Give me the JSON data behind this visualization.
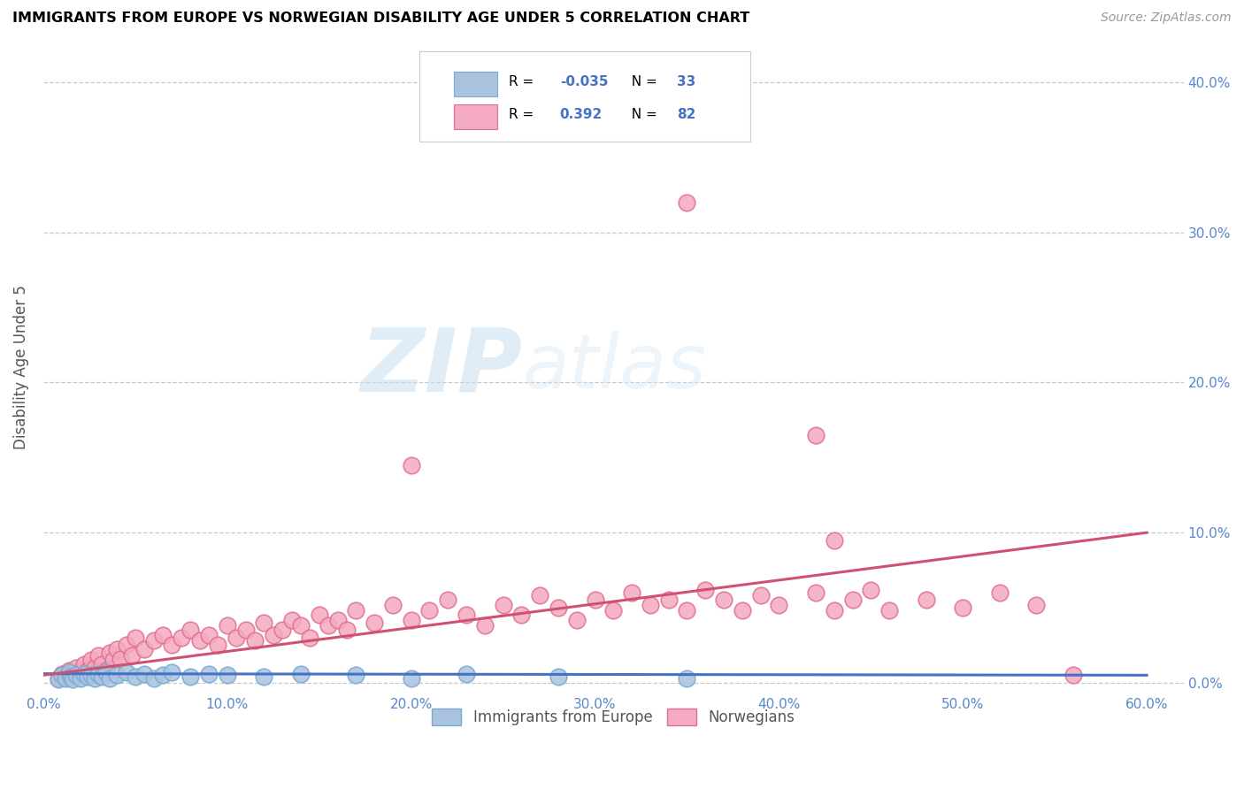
{
  "title": "IMMIGRANTS FROM EUROPE VS NORWEGIAN DISABILITY AGE UNDER 5 CORRELATION CHART",
  "source": "Source: ZipAtlas.com",
  "ylabel": "Disability Age Under 5",
  "xlim": [
    0.0,
    0.62
  ],
  "ylim": [
    -0.005,
    0.425
  ],
  "xticks": [
    0.0,
    0.1,
    0.2,
    0.3,
    0.4,
    0.5,
    0.6
  ],
  "xtick_labels": [
    "0.0%",
    "10.0%",
    "20.0%",
    "30.0%",
    "40.0%",
    "50.0%",
    "60.0%"
  ],
  "yticks": [
    0.0,
    0.1,
    0.2,
    0.3,
    0.4
  ],
  "ytick_labels": [
    "0.0%",
    "10.0%",
    "20.0%",
    "30.0%",
    "40.0%"
  ],
  "grid_color": "#c8c8c8",
  "background_color": "#ffffff",
  "legend_r1": "-0.035",
  "legend_n1": "33",
  "legend_r2": "0.392",
  "legend_n2": "82",
  "blue_marker_color": "#aac4e0",
  "blue_edge_color": "#7aaad0",
  "pink_marker_color": "#f4aac0",
  "pink_edge_color": "#e07090",
  "blue_line_color": "#4472c4",
  "pink_line_color": "#d05070",
  "blue_scatter": [
    [
      0.008,
      0.002
    ],
    [
      0.01,
      0.005
    ],
    [
      0.012,
      0.003
    ],
    [
      0.014,
      0.007
    ],
    [
      0.015,
      0.004
    ],
    [
      0.016,
      0.002
    ],
    [
      0.018,
      0.005
    ],
    [
      0.02,
      0.003
    ],
    [
      0.022,
      0.006
    ],
    [
      0.024,
      0.004
    ],
    [
      0.026,
      0.005
    ],
    [
      0.028,
      0.003
    ],
    [
      0.03,
      0.006
    ],
    [
      0.032,
      0.004
    ],
    [
      0.034,
      0.007
    ],
    [
      0.036,
      0.003
    ],
    [
      0.04,
      0.005
    ],
    [
      0.045,
      0.007
    ],
    [
      0.05,
      0.004
    ],
    [
      0.055,
      0.006
    ],
    [
      0.06,
      0.003
    ],
    [
      0.065,
      0.005
    ],
    [
      0.07,
      0.007
    ],
    [
      0.08,
      0.004
    ],
    [
      0.09,
      0.006
    ],
    [
      0.1,
      0.005
    ],
    [
      0.12,
      0.004
    ],
    [
      0.14,
      0.006
    ],
    [
      0.17,
      0.005
    ],
    [
      0.2,
      0.003
    ],
    [
      0.23,
      0.006
    ],
    [
      0.28,
      0.004
    ],
    [
      0.35,
      0.003
    ]
  ],
  "pink_scatter": [
    [
      0.008,
      0.003
    ],
    [
      0.01,
      0.006
    ],
    [
      0.012,
      0.004
    ],
    [
      0.014,
      0.008
    ],
    [
      0.016,
      0.005
    ],
    [
      0.018,
      0.01
    ],
    [
      0.02,
      0.007
    ],
    [
      0.022,
      0.012
    ],
    [
      0.024,
      0.008
    ],
    [
      0.026,
      0.015
    ],
    [
      0.028,
      0.01
    ],
    [
      0.03,
      0.018
    ],
    [
      0.032,
      0.012
    ],
    [
      0.034,
      0.008
    ],
    [
      0.036,
      0.02
    ],
    [
      0.038,
      0.015
    ],
    [
      0.04,
      0.022
    ],
    [
      0.042,
      0.016
    ],
    [
      0.045,
      0.025
    ],
    [
      0.048,
      0.018
    ],
    [
      0.05,
      0.03
    ],
    [
      0.055,
      0.022
    ],
    [
      0.06,
      0.028
    ],
    [
      0.065,
      0.032
    ],
    [
      0.07,
      0.025
    ],
    [
      0.075,
      0.03
    ],
    [
      0.08,
      0.035
    ],
    [
      0.085,
      0.028
    ],
    [
      0.09,
      0.032
    ],
    [
      0.095,
      0.025
    ],
    [
      0.1,
      0.038
    ],
    [
      0.105,
      0.03
    ],
    [
      0.11,
      0.035
    ],
    [
      0.115,
      0.028
    ],
    [
      0.12,
      0.04
    ],
    [
      0.125,
      0.032
    ],
    [
      0.13,
      0.035
    ],
    [
      0.135,
      0.042
    ],
    [
      0.14,
      0.038
    ],
    [
      0.145,
      0.03
    ],
    [
      0.15,
      0.045
    ],
    [
      0.155,
      0.038
    ],
    [
      0.16,
      0.042
    ],
    [
      0.165,
      0.035
    ],
    [
      0.17,
      0.048
    ],
    [
      0.18,
      0.04
    ],
    [
      0.19,
      0.052
    ],
    [
      0.2,
      0.042
    ],
    [
      0.21,
      0.048
    ],
    [
      0.22,
      0.055
    ],
    [
      0.23,
      0.045
    ],
    [
      0.24,
      0.038
    ],
    [
      0.25,
      0.052
    ],
    [
      0.26,
      0.045
    ],
    [
      0.27,
      0.058
    ],
    [
      0.28,
      0.05
    ],
    [
      0.29,
      0.042
    ],
    [
      0.3,
      0.055
    ],
    [
      0.31,
      0.048
    ],
    [
      0.32,
      0.06
    ],
    [
      0.33,
      0.052
    ],
    [
      0.34,
      0.055
    ],
    [
      0.35,
      0.048
    ],
    [
      0.36,
      0.062
    ],
    [
      0.37,
      0.055
    ],
    [
      0.38,
      0.048
    ],
    [
      0.39,
      0.058
    ],
    [
      0.4,
      0.052
    ],
    [
      0.42,
      0.06
    ],
    [
      0.43,
      0.048
    ],
    [
      0.44,
      0.055
    ],
    [
      0.45,
      0.062
    ],
    [
      0.46,
      0.048
    ],
    [
      0.48,
      0.055
    ],
    [
      0.5,
      0.05
    ],
    [
      0.52,
      0.06
    ],
    [
      0.54,
      0.052
    ],
    [
      0.56,
      0.005
    ],
    [
      0.35,
      0.32
    ],
    [
      0.2,
      0.145
    ],
    [
      0.42,
      0.165
    ],
    [
      0.43,
      0.095
    ]
  ],
  "blue_trend": [
    0.0,
    0.6,
    0.006,
    0.005
  ],
  "pink_trend": [
    0.0,
    0.6,
    0.005,
    0.1
  ]
}
